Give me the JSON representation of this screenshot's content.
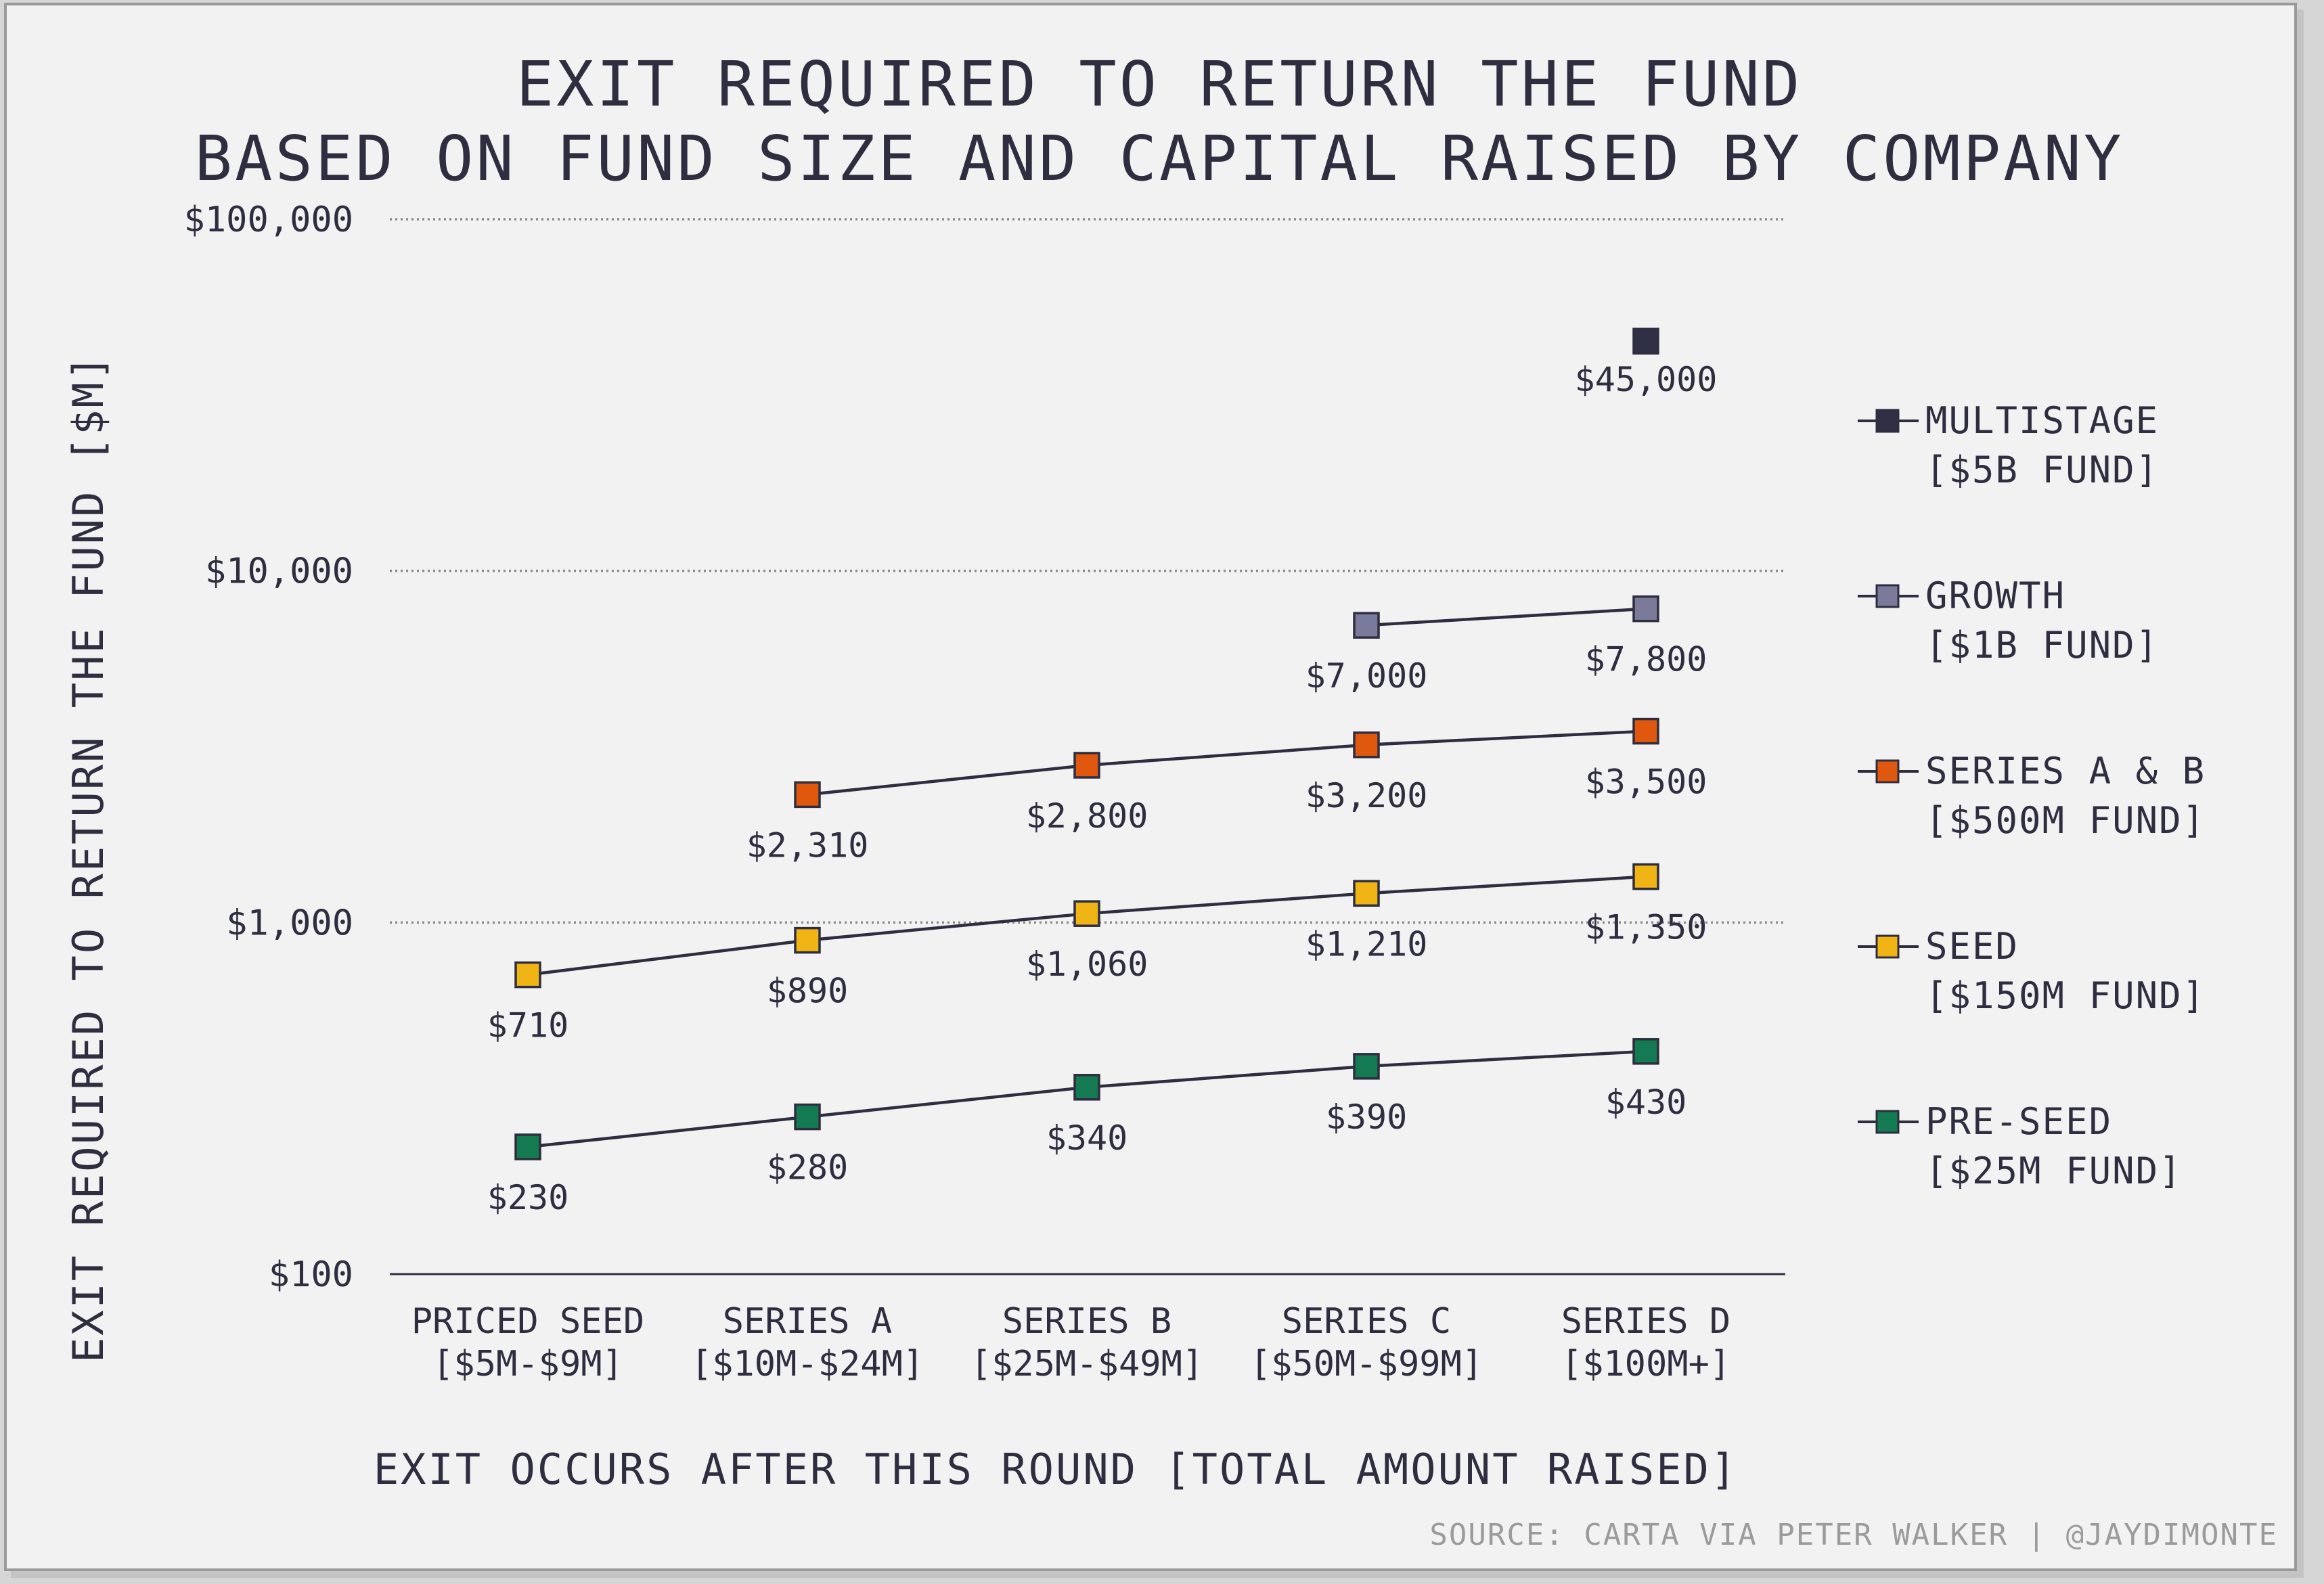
{
  "chart_data": {
    "type": "line",
    "title_lines": [
      "EXIT REQUIRED TO RETURN THE FUND",
      "BASED ON FUND SIZE AND CAPITAL RAISED BY COMPANY"
    ],
    "xlabel": "EXIT OCCURS AFTER THIS ROUND [TOTAL AMOUNT RAISED]",
    "ylabel": "EXIT REQUIRED TO RETURN THE FUND [$M]",
    "y_scale": "log",
    "ylim": [
      100,
      100000
    ],
    "y_ticks": [
      {
        "value": 100,
        "label": "$100"
      },
      {
        "value": 1000,
        "label": "$1,000"
      },
      {
        "value": 10000,
        "label": "$10,000"
      },
      {
        "value": 100000,
        "label": "$100,000"
      }
    ],
    "categories": [
      {
        "line1": "PRICED SEED",
        "line2": "[$5M-$9M]"
      },
      {
        "line1": "SERIES A",
        "line2": "[$10M-$24M]"
      },
      {
        "line1": "SERIES B",
        "line2": "[$25M-$49M]"
      },
      {
        "line1": "SERIES C",
        "line2": "[$50M-$99M]"
      },
      {
        "line1": "SERIES D",
        "line2": "[$100M+]"
      }
    ],
    "grid": "dotted horizontal at major ticks",
    "legend_position": "right",
    "series": [
      {
        "name_line1": "MULTISTAGE",
        "name_line2": "[$5B FUND]",
        "color": "#2f2f45",
        "values": [
          null,
          null,
          null,
          null,
          45000
        ],
        "labels": [
          null,
          null,
          null,
          null,
          "$45,000"
        ]
      },
      {
        "name_line1": "GROWTH",
        "name_line2": "[$1B FUND]",
        "color": "#7a7a9a",
        "values": [
          null,
          null,
          null,
          7000,
          7800
        ],
        "labels": [
          null,
          null,
          null,
          "$7,000",
          "$7,800"
        ]
      },
      {
        "name_line1": "SERIES A & B",
        "name_line2": "[$500M FUND]",
        "color": "#e0580e",
        "values": [
          null,
          2310,
          2800,
          3200,
          3500
        ],
        "labels": [
          null,
          "$2,310",
          "$2,800",
          "$3,200",
          "$3,500"
        ]
      },
      {
        "name_line1": "SEED",
        "name_line2": "[$150M FUND]",
        "color": "#f0b415",
        "values": [
          710,
          890,
          1060,
          1210,
          1350
        ],
        "labels": [
          "$710",
          "$890",
          "$1,060",
          "$1,210",
          "$1,350"
        ]
      },
      {
        "name_line1": "PRE-SEED",
        "name_line2": "[$25M FUND]",
        "color": "#147a52",
        "values": [
          230,
          280,
          340,
          390,
          430
        ],
        "labels": [
          "$230",
          "$280",
          "$340",
          "$390",
          "$430"
        ]
      }
    ],
    "source": "SOURCE: CARTA VIA PETER WALKER | @JAYDIMONTE"
  },
  "colors": {
    "background": "#f2f2f2",
    "text": "#2e2e40",
    "line": "#2e2e40",
    "grid": "#8a8a8a"
  }
}
